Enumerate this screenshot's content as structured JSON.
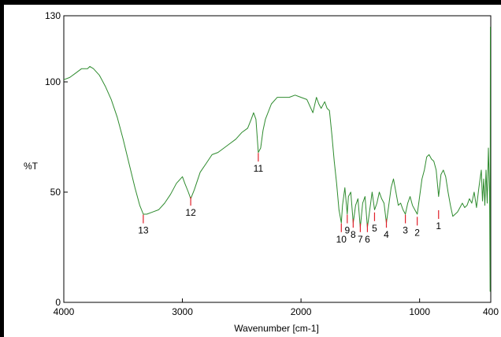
{
  "chart_data": {
    "type": "line",
    "xlabel": "Wavenumber [cm-1]",
    "ylabel": "%T",
    "xlim": [
      4000,
      400
    ],
    "ylim": [
      0,
      130
    ],
    "x_reversed": true,
    "grid": false,
    "x_ticks": [
      4000,
      3000,
      2000,
      1000,
      400
    ],
    "y_ticks": [
      0,
      50,
      100,
      130
    ],
    "x_tick_labels": [
      "4000",
      "3000",
      "2000",
      "1000",
      "400"
    ],
    "y_tick_labels": [
      "0",
      "50",
      "100",
      "130"
    ],
    "colors": {
      "spectrum": "#2e8b2e",
      "peak_marker": "#e0202a",
      "axis": "#000000"
    },
    "series": [
      {
        "values": [
          [
            4000,
            101
          ],
          [
            3950,
            102
          ],
          [
            3900,
            104
          ],
          [
            3850,
            106
          ],
          [
            3800,
            106
          ],
          [
            3780,
            107
          ],
          [
            3750,
            106
          ],
          [
            3700,
            103
          ],
          [
            3650,
            98
          ],
          [
            3600,
            92
          ],
          [
            3550,
            84
          ],
          [
            3500,
            74
          ],
          [
            3450,
            63
          ],
          [
            3400,
            52
          ],
          [
            3360,
            44
          ],
          [
            3330,
            40
          ],
          [
            3300,
            40
          ],
          [
            3250,
            41
          ],
          [
            3200,
            42
          ],
          [
            3150,
            45
          ],
          [
            3100,
            49
          ],
          [
            3050,
            54
          ],
          [
            3000,
            57
          ],
          [
            2980,
            54
          ],
          [
            2950,
            50
          ],
          [
            2930,
            47
          ],
          [
            2900,
            51
          ],
          [
            2850,
            59
          ],
          [
            2800,
            63
          ],
          [
            2750,
            67
          ],
          [
            2700,
            68
          ],
          [
            2650,
            70
          ],
          [
            2600,
            72
          ],
          [
            2550,
            74
          ],
          [
            2500,
            77
          ],
          [
            2450,
            79
          ],
          [
            2420,
            83
          ],
          [
            2400,
            86
          ],
          [
            2380,
            83
          ],
          [
            2360,
            68
          ],
          [
            2340,
            70
          ],
          [
            2320,
            78
          ],
          [
            2300,
            83
          ],
          [
            2250,
            90
          ],
          [
            2200,
            93
          ],
          [
            2150,
            93
          ],
          [
            2100,
            93
          ],
          [
            2050,
            94
          ],
          [
            2000,
            93
          ],
          [
            1950,
            92
          ],
          [
            1900,
            86
          ],
          [
            1870,
            93
          ],
          [
            1850,
            90
          ],
          [
            1830,
            88
          ],
          [
            1800,
            91
          ],
          [
            1780,
            88
          ],
          [
            1760,
            87
          ],
          [
            1740,
            76
          ],
          [
            1720,
            64
          ],
          [
            1700,
            54
          ],
          [
            1680,
            42
          ],
          [
            1660,
            36
          ],
          [
            1650,
            44
          ],
          [
            1630,
            52
          ],
          [
            1610,
            40
          ],
          [
            1600,
            48
          ],
          [
            1580,
            50
          ],
          [
            1560,
            36
          ],
          [
            1540,
            44
          ],
          [
            1520,
            47
          ],
          [
            1500,
            34
          ],
          [
            1480,
            45
          ],
          [
            1460,
            48
          ],
          [
            1440,
            34
          ],
          [
            1420,
            42
          ],
          [
            1400,
            50
          ],
          [
            1380,
            42
          ],
          [
            1360,
            45
          ],
          [
            1340,
            50
          ],
          [
            1320,
            47
          ],
          [
            1300,
            45
          ],
          [
            1280,
            36
          ],
          [
            1260,
            44
          ],
          [
            1240,
            52
          ],
          [
            1220,
            56
          ],
          [
            1200,
            50
          ],
          [
            1180,
            44
          ],
          [
            1160,
            45
          ],
          [
            1140,
            42
          ],
          [
            1120,
            40
          ],
          [
            1100,
            45
          ],
          [
            1080,
            48
          ],
          [
            1060,
            44
          ],
          [
            1040,
            42
          ],
          [
            1020,
            40
          ],
          [
            1000,
            48
          ],
          [
            980,
            56
          ],
          [
            960,
            60
          ],
          [
            940,
            66
          ],
          [
            920,
            67
          ],
          [
            900,
            65
          ],
          [
            880,
            64
          ],
          [
            860,
            60
          ],
          [
            840,
            48
          ],
          [
            820,
            58
          ],
          [
            800,
            60
          ],
          [
            780,
            57
          ],
          [
            760,
            50
          ],
          [
            740,
            44
          ],
          [
            720,
            39
          ],
          [
            700,
            40
          ],
          [
            680,
            41
          ],
          [
            660,
            43
          ],
          [
            640,
            45
          ],
          [
            620,
            43
          ],
          [
            600,
            44
          ],
          [
            580,
            47
          ],
          [
            560,
            45
          ],
          [
            540,
            50
          ],
          [
            520,
            43
          ],
          [
            500,
            52
          ],
          [
            480,
            60
          ],
          [
            470,
            46
          ],
          [
            460,
            56
          ],
          [
            450,
            44
          ],
          [
            440,
            60
          ],
          [
            430,
            45
          ],
          [
            420,
            70
          ],
          [
            410,
            50
          ],
          [
            405,
            5
          ],
          [
            403,
            125
          ]
        ]
      }
    ],
    "annotations": [
      {
        "label": "1",
        "x": 840,
        "y": 40
      },
      {
        "label": "2",
        "x": 1020,
        "y": 37
      },
      {
        "label": "3",
        "x": 1120,
        "y": 38
      },
      {
        "label": "4",
        "x": 1280,
        "y": 36
      },
      {
        "label": "5",
        "x": 1380,
        "y": 39
      },
      {
        "label": "6",
        "x": 1440,
        "y": 34
      },
      {
        "label": "7",
        "x": 1500,
        "y": 34
      },
      {
        "label": "8",
        "x": 1560,
        "y": 36
      },
      {
        "label": "9",
        "x": 1610,
        "y": 38
      },
      {
        "label": "10",
        "x": 1660,
        "y": 34
      },
      {
        "label": "11",
        "x": 2360,
        "y": 66
      },
      {
        "label": "12",
        "x": 2930,
        "y": 46
      },
      {
        "label": "13",
        "x": 3330,
        "y": 38
      }
    ]
  }
}
